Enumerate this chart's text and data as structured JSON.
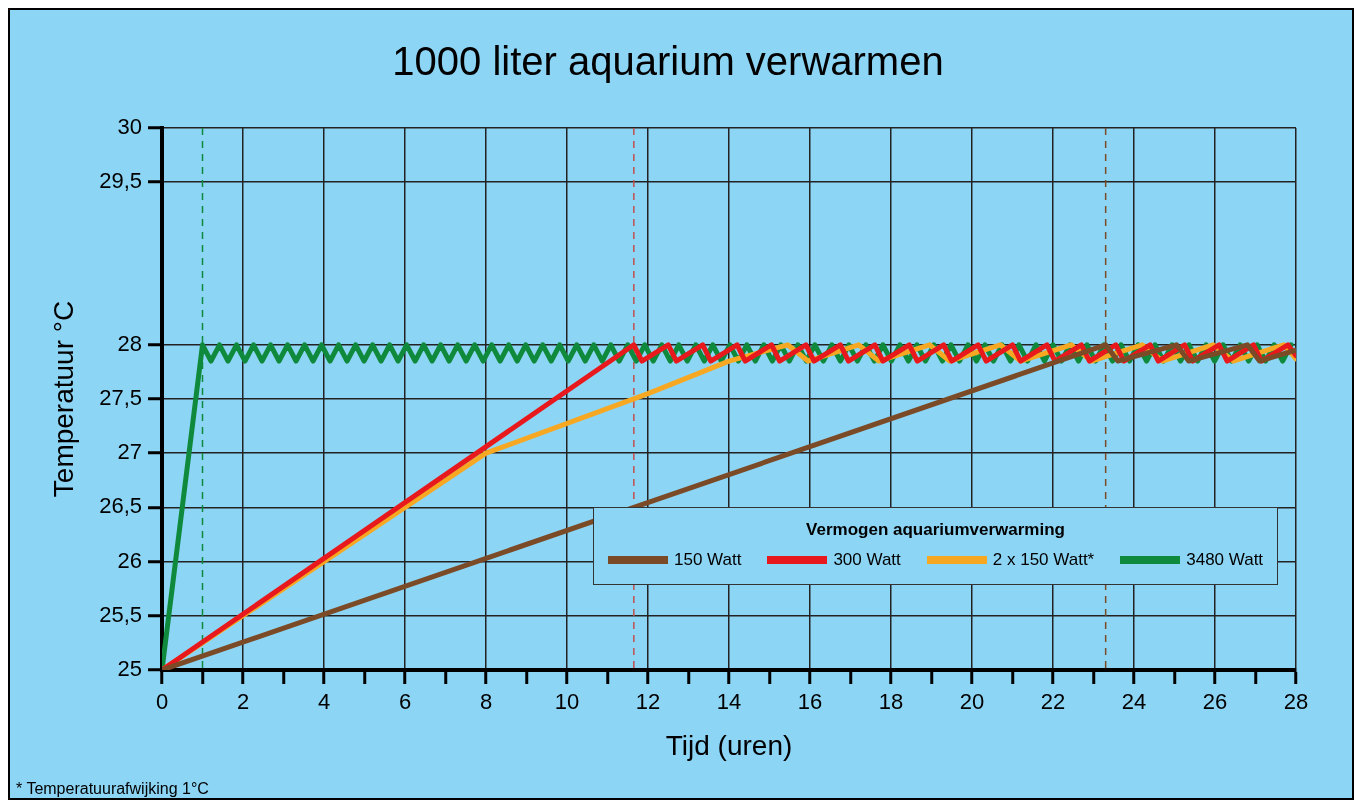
{
  "chart_data": {
    "type": "line",
    "title": "1000 liter aquarium verwarmen",
    "xlabel": "Tijd (uren)",
    "ylabel": "Temperatuur °C",
    "legend_title": "Vermogen aquariumverwarming",
    "xlim": [
      0,
      28
    ],
    "xticks": [
      0,
      {
        "value": 1,
        "label": null
      },
      2,
      {
        "value": 3,
        "label": null
      },
      4,
      {
        "value": 5,
        "label": null
      },
      6,
      {
        "value": 7,
        "label": null
      },
      8,
      {
        "value": 9,
        "label": null
      },
      10,
      {
        "value": 11,
        "label": null
      },
      12,
      {
        "value": 13,
        "label": null
      },
      14,
      {
        "value": 15,
        "label": null
      },
      16,
      {
        "value": 17,
        "label": null
      },
      18,
      {
        "value": 19,
        "label": null
      },
      20,
      {
        "value": 21,
        "label": null
      },
      22,
      {
        "value": 23,
        "label": null
      },
      24,
      {
        "value": 25,
        "label": null
      },
      26,
      {
        "value": 27,
        "label": null
      },
      28
    ],
    "ylim": [
      25,
      30
    ],
    "yticks": [
      25,
      {
        "value": 25.5,
        "label": "25,5"
      },
      26,
      {
        "value": 26.5,
        "label": "26,5"
      },
      27,
      {
        "value": 27.5,
        "label": "27,5"
      },
      28,
      {
        "value": 29.5,
        "label": "29,5"
      },
      30
    ],
    "grid": true,
    "legend": "bottom right",
    "line_style": "solid",
    "series": [
      {
        "name": "150 Watt",
        "color": "#7b4a26",
        "x": [
          0,
          23.3,
          23.6,
          25.05,
          25.35,
          26.8,
          27.1,
          28
        ],
        "values": [
          25,
          28,
          27.85,
          28,
          27.85,
          28,
          27.85,
          27.95
        ]
      },
      {
        "name": "300 Watt",
        "color": "#e8191c",
        "x": [
          0,
          11.65,
          11.85,
          12.5,
          12.7,
          13.35,
          13.55,
          14.2,
          14.4,
          15.05,
          15.25,
          15.9,
          16.1,
          16.75,
          16.95,
          17.6,
          17.8,
          18.45,
          18.65,
          19.3,
          19.5,
          20.15,
          20.35,
          21.0,
          21.2,
          21.85,
          22.05,
          22.7,
          22.9,
          23.55,
          23.75,
          24.4,
          24.6,
          25.25,
          25.45,
          26.1,
          26.3,
          26.95,
          27.15,
          27.8,
          28
        ],
        "values": [
          25,
          28,
          27.85,
          28,
          27.85,
          28,
          27.85,
          28,
          27.85,
          28,
          27.85,
          28,
          27.85,
          28,
          27.85,
          28,
          27.85,
          28,
          27.85,
          28,
          27.85,
          28,
          27.85,
          28,
          27.85,
          28,
          27.85,
          28,
          27.85,
          28,
          27.85,
          28,
          27.85,
          28,
          27.85,
          28,
          27.85,
          28,
          27.85,
          28,
          27.9
        ]
      },
      {
        "name": "2 x 150 Watt*",
        "color": "#f7a823",
        "x": [
          0,
          8,
          12,
          14,
          15.45,
          15.95,
          17.2,
          17.7,
          18.95,
          19.45,
          20.7,
          21.2,
          22.45,
          22.95,
          24.2,
          24.7,
          25.95,
          26.45,
          27.7,
          28
        ],
        "values": [
          25,
          27,
          27.55,
          27.85,
          28,
          27.85,
          28,
          27.85,
          28,
          27.85,
          28,
          27.85,
          28,
          27.85,
          28,
          27.85,
          28,
          27.85,
          28,
          27.87
        ]
      },
      {
        "name": "3480 Watt",
        "color": "#0f8a3c",
        "x": [
          0,
          1.0,
          1.21,
          1.42,
          1.63,
          1.84,
          2.05,
          2.26,
          2.47,
          2.68,
          2.89,
          3.1,
          3.31,
          3.52,
          3.73,
          3.94,
          4.15,
          4.36,
          4.57,
          4.78,
          4.99,
          5.2,
          5.41,
          5.62,
          5.83,
          6.04,
          6.25,
          6.46,
          6.67,
          6.88,
          7.09,
          7.3,
          7.51,
          7.72,
          7.93,
          8.14,
          8.35,
          8.56,
          8.77,
          8.98,
          9.19,
          9.4,
          9.61,
          9.82,
          10.03,
          10.24,
          10.45,
          10.66,
          10.87,
          11.08,
          11.29,
          11.5,
          11.71,
          11.92,
          12.13,
          12.34,
          12.55,
          12.76,
          12.97,
          13.18,
          13.39,
          13.6,
          13.81,
          14.02,
          14.23,
          14.44,
          14.65,
          14.86,
          15.07,
          15.28,
          15.49,
          15.7,
          15.91,
          16.12,
          16.33,
          16.54,
          16.75,
          16.96,
          17.17,
          17.38,
          17.59,
          17.8,
          18.01,
          18.22,
          18.43,
          18.64,
          18.85,
          19.06,
          19.27,
          19.48,
          19.69,
          19.9,
          20.11,
          20.32,
          20.53,
          20.74,
          20.95,
          21.16,
          21.37,
          21.58,
          21.79,
          22.0,
          22.21,
          22.42,
          22.63,
          22.84,
          23.05,
          23.26,
          23.47,
          23.68,
          23.89,
          24.1,
          24.31,
          24.52,
          24.73,
          24.94,
          25.15,
          25.36,
          25.57,
          25.78,
          25.99,
          26.2,
          26.41,
          26.62,
          26.83,
          27.04,
          27.25,
          27.46,
          27.67,
          27.88
        ],
        "values": [
          25,
          28,
          27.85,
          28,
          27.85,
          28,
          27.85,
          28,
          27.85,
          28,
          27.85,
          28,
          27.85,
          28,
          27.85,
          28,
          27.85,
          28,
          27.85,
          28,
          27.85,
          28,
          27.85,
          28,
          27.85,
          28,
          27.85,
          28,
          27.85,
          28,
          27.85,
          28,
          27.85,
          28,
          27.85,
          28,
          27.85,
          28,
          27.85,
          28,
          27.85,
          28,
          27.85,
          28,
          27.85,
          28,
          27.85,
          28,
          27.85,
          28,
          27.85,
          28,
          27.85,
          28,
          27.85,
          28,
          27.85,
          28,
          27.85,
          28,
          27.85,
          28,
          27.85,
          28,
          27.85,
          28,
          27.85,
          28,
          27.85,
          28,
          27.85,
          28,
          27.85,
          28,
          27.85,
          28,
          27.85,
          28,
          27.85,
          28,
          27.85,
          28,
          27.85,
          28,
          27.85,
          28,
          27.85,
          28,
          27.85,
          28,
          27.85,
          28,
          27.85,
          28,
          27.85,
          28,
          27.85,
          28,
          27.85,
          28,
          27.85,
          28,
          27.85,
          28,
          27.85,
          28,
          27.85,
          28,
          27.85,
          28,
          27.85,
          28,
          27.85,
          28,
          27.85,
          28,
          27.85,
          28,
          27.85,
          28,
          27.85,
          28,
          27.85,
          28,
          27.85,
          28,
          27.85,
          28,
          27.85,
          28
        ]
      }
    ],
    "ref_lines": [
      {
        "axis": "x",
        "value": 1,
        "label": null,
        "color": "#0f8a3c",
        "line_style": "dashed"
      },
      {
        "axis": "x",
        "value": 11.65,
        "label": null,
        "color": "#c0504d",
        "line_style": "dashed"
      },
      {
        "axis": "x",
        "value": 23.3,
        "label": null,
        "color": "#7b4a26",
        "line_style": "dashed"
      }
    ],
    "annotations": [
      "* Temperatuurafwijking 1°C"
    ]
  }
}
